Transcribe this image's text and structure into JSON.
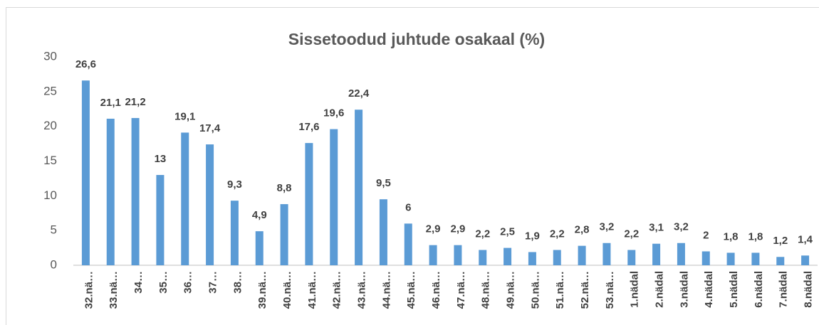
{
  "chart_data": {
    "type": "bar",
    "title": "Sissetoodud juhtude osakaal (%)",
    "categories": [
      "32.nä…",
      "33.nä…",
      "34…",
      "35…",
      "36…",
      "37…",
      "38…",
      "39.nä…",
      "40.nä…",
      "41.nä…",
      "42.nä…",
      "43.nä…",
      "44.nä…",
      "45.nä…",
      "46.nä…",
      "47.nä…",
      "48.nä…",
      "49.nä…",
      "50.nä…",
      "51.nä…",
      "52.nä…",
      "53.nä…",
      "1.nädal",
      "2.nädal",
      "3.nädal",
      "4.nädal",
      "5.nädal",
      "6.nädal",
      "7.nädal",
      "8.nädal"
    ],
    "values": [
      26.6,
      21.1,
      21.2,
      13,
      19.1,
      17.4,
      9.3,
      4.9,
      8.8,
      17.6,
      19.6,
      22.4,
      9.5,
      6,
      2.9,
      2.9,
      2.2,
      2.5,
      1.9,
      2.2,
      2.8,
      3.2,
      2.2,
      3.1,
      3.2,
      2,
      1.8,
      1.8,
      1.2,
      1.4
    ],
    "value_labels": [
      "26,6",
      "21,1",
      "21,2",
      "13",
      "19,1",
      "17,4",
      "9,3",
      "4,9",
      "8,8",
      "17,6",
      "19,6",
      "22,4",
      "9,5",
      "6",
      "2,9",
      "2,9",
      "2,2",
      "2,5",
      "1,9",
      "2,2",
      "2,8",
      "3,2",
      "2,2",
      "3,1",
      "3,2",
      "2",
      "1,8",
      "1,8",
      "1,2",
      "1,4"
    ],
    "color": "#5b9bd5",
    "ylim": [
      0,
      30
    ],
    "yticks": [
      0,
      5,
      10,
      15,
      20,
      25,
      30
    ],
    "grid": false
  }
}
